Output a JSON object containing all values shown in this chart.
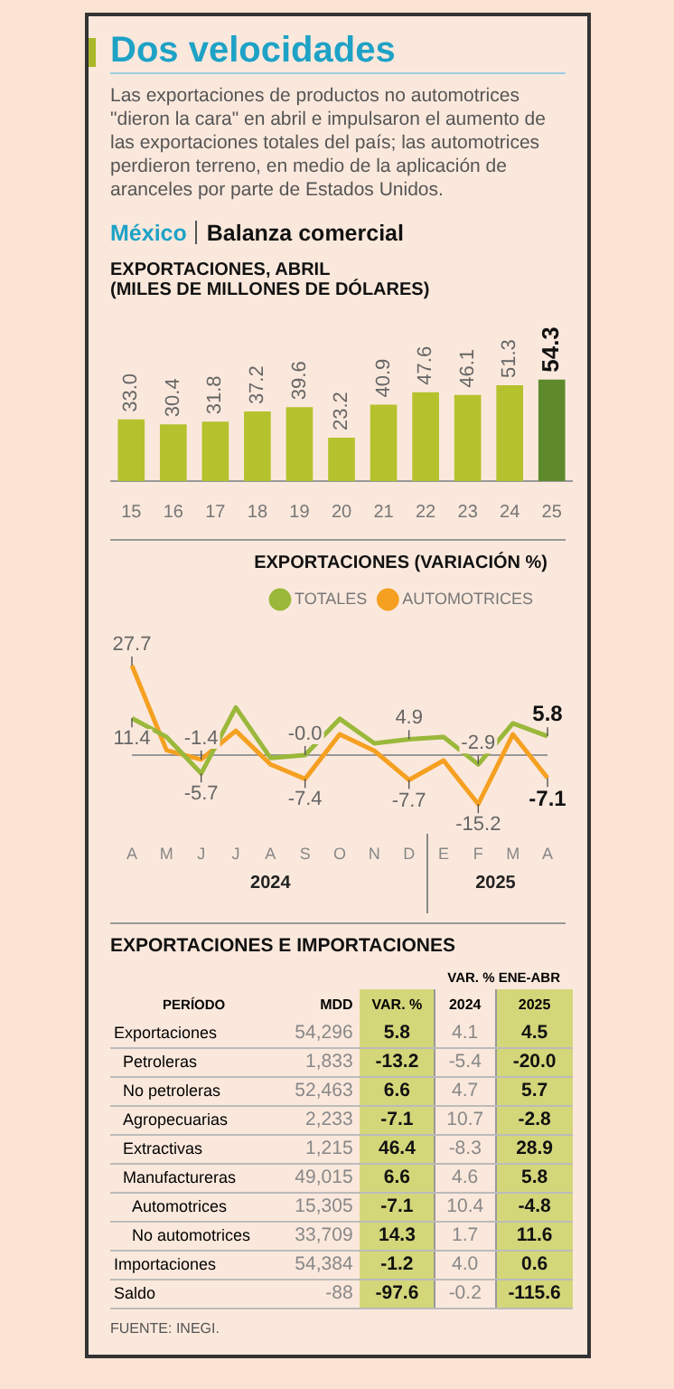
{
  "chart_data": [
    {
      "type": "other",
      "title": "Dos velocidades",
      "subtitle": "Las exportaciones de productos no automotrices \"dieron la cara\" en abril e impulsaron el aumento de las exportaciones totales del país; las automotrices perdieron terreno, en medio de la aplicación de aranceles por parte de Estados Unidos.",
      "annotations": [
        "México",
        "Balanza comercial"
      ]
    },
    {
      "type": "bar",
      "title": "EXPORTACIONES, ABRIL",
      "subtitle": "(MILES DE MILLONES DE DÓLARES)",
      "categories": [
        "15",
        "16",
        "17",
        "18",
        "19",
        "20",
        "21",
        "22",
        "23",
        "24",
        "25"
      ],
      "values": [
        33.0,
        30.4,
        31.8,
        37.2,
        39.6,
        23.2,
        40.9,
        47.6,
        46.1,
        51.3,
        54.3
      ],
      "value_labels": [
        "33.0",
        "30.4",
        "31.8",
        "37.2",
        "39.6",
        "23.2",
        "40.9",
        "47.6",
        "46.1",
        "51.3",
        "54.3"
      ],
      "colors": [
        "#b5c22d",
        "#b5c22d",
        "#b5c22d",
        "#b5c22d",
        "#b5c22d",
        "#b5c22d",
        "#b5c22d",
        "#b5c22d",
        "#b5c22d",
        "#b5c22d",
        "#5e8a2c"
      ]
    },
    {
      "type": "line",
      "title": "EXPORTACIONES (VARIACIÓN %)",
      "categories": [
        "A",
        "M",
        "J",
        "J",
        "A",
        "S",
        "O",
        "N",
        "D",
        "E",
        "F",
        "M",
        "A"
      ],
      "legend": "top right",
      "marker": "none",
      "line_style": "solid",
      "grid": false,
      "series": [
        {
          "name": "TOTALES",
          "color": "#9ab83a",
          "values": [
            11.4,
            5.6,
            -5.7,
            14.7,
            -0.9,
            -0.0,
            11.2,
            3.6,
            4.9,
            5.6,
            -2.9,
            9.8,
            5.8
          ],
          "value_labels": [
            "11.4",
            null,
            "-5.7",
            null,
            null,
            "-0.0",
            null,
            null,
            "4.9",
            null,
            "-2.9",
            null,
            "5.8"
          ]
        },
        {
          "name": "AUTOMOTRICES",
          "color": "#f5a021",
          "values": [
            27.7,
            1.5,
            -1.4,
            7.5,
            -2.9,
            -7.4,
            6.4,
            1.3,
            -7.7,
            -1.7,
            -15.2,
            6.4,
            -7.1
          ],
          "value_labels": [
            "27.7",
            null,
            "-1.4",
            null,
            null,
            "-7.4",
            null,
            null,
            "-7.7",
            null,
            "-15.2",
            null,
            "-7.1"
          ]
        }
      ],
      "ref_lines": [
        {
          "axis": "y",
          "value": 0,
          "color": "#999999"
        }
      ],
      "annotations": [
        "2024",
        "2025"
      ]
    },
    {
      "type": "other",
      "title": "EXPORTACIONES E IMPORTACIONES",
      "ylabel": "PERÍODO",
      "categories": [
        "Exportaciones",
        "Petroleras",
        "No petroleras",
        "Agropecuarias",
        "Extractivas",
        "Manufactureras",
        "Automotrices",
        "No automotrices",
        "Importaciones",
        "Saldo"
      ],
      "series": [
        {
          "name": "MDD",
          "values": [
            54296,
            1833,
            52463,
            2233,
            1215,
            49015,
            15305,
            33709,
            54384,
            -88
          ],
          "value_labels": [
            "54,296",
            "1,833",
            "52,463",
            "2,233",
            "1,215",
            "49,015",
            "15,305",
            "33,709",
            "54,384",
            "-88"
          ]
        },
        {
          "name": "VAR. %",
          "color": "#d4d67a",
          "values": [
            5.8,
            -13.2,
            6.6,
            -7.1,
            46.4,
            6.6,
            -7.1,
            14.3,
            -1.2,
            -97.6
          ],
          "value_labels": [
            "5.8",
            "-13.2",
            "6.6",
            "-7.1",
            "46.4",
            "6.6",
            "-7.1",
            "14.3",
            "-1.2",
            "-97.6"
          ]
        },
        {
          "name": "2024",
          "values": [
            4.1,
            -5.4,
            4.7,
            10.7,
            -8.3,
            4.6,
            10.4,
            1.7,
            4.0,
            -0.2
          ],
          "value_labels": [
            "4.1",
            "-5.4",
            "4.7",
            "10.7",
            "-8.3",
            "4.6",
            "10.4",
            "1.7",
            "4.0",
            "-0.2"
          ]
        },
        {
          "name": "2025",
          "color": "#d4d67a",
          "values": [
            4.5,
            -20.0,
            5.7,
            -2.8,
            28.9,
            5.8,
            -4.8,
            11.6,
            0.6,
            -115.6
          ],
          "value_labels": [
            "4.5",
            "-20.0",
            "5.7",
            "-2.8",
            "28.9",
            "5.8",
            "-4.8",
            "11.6",
            "0.6",
            "-115.6"
          ]
        }
      ],
      "annotations": [
        "VAR. % ENE-ABR",
        "FUENTE: INEGI."
      ]
    }
  ]
}
